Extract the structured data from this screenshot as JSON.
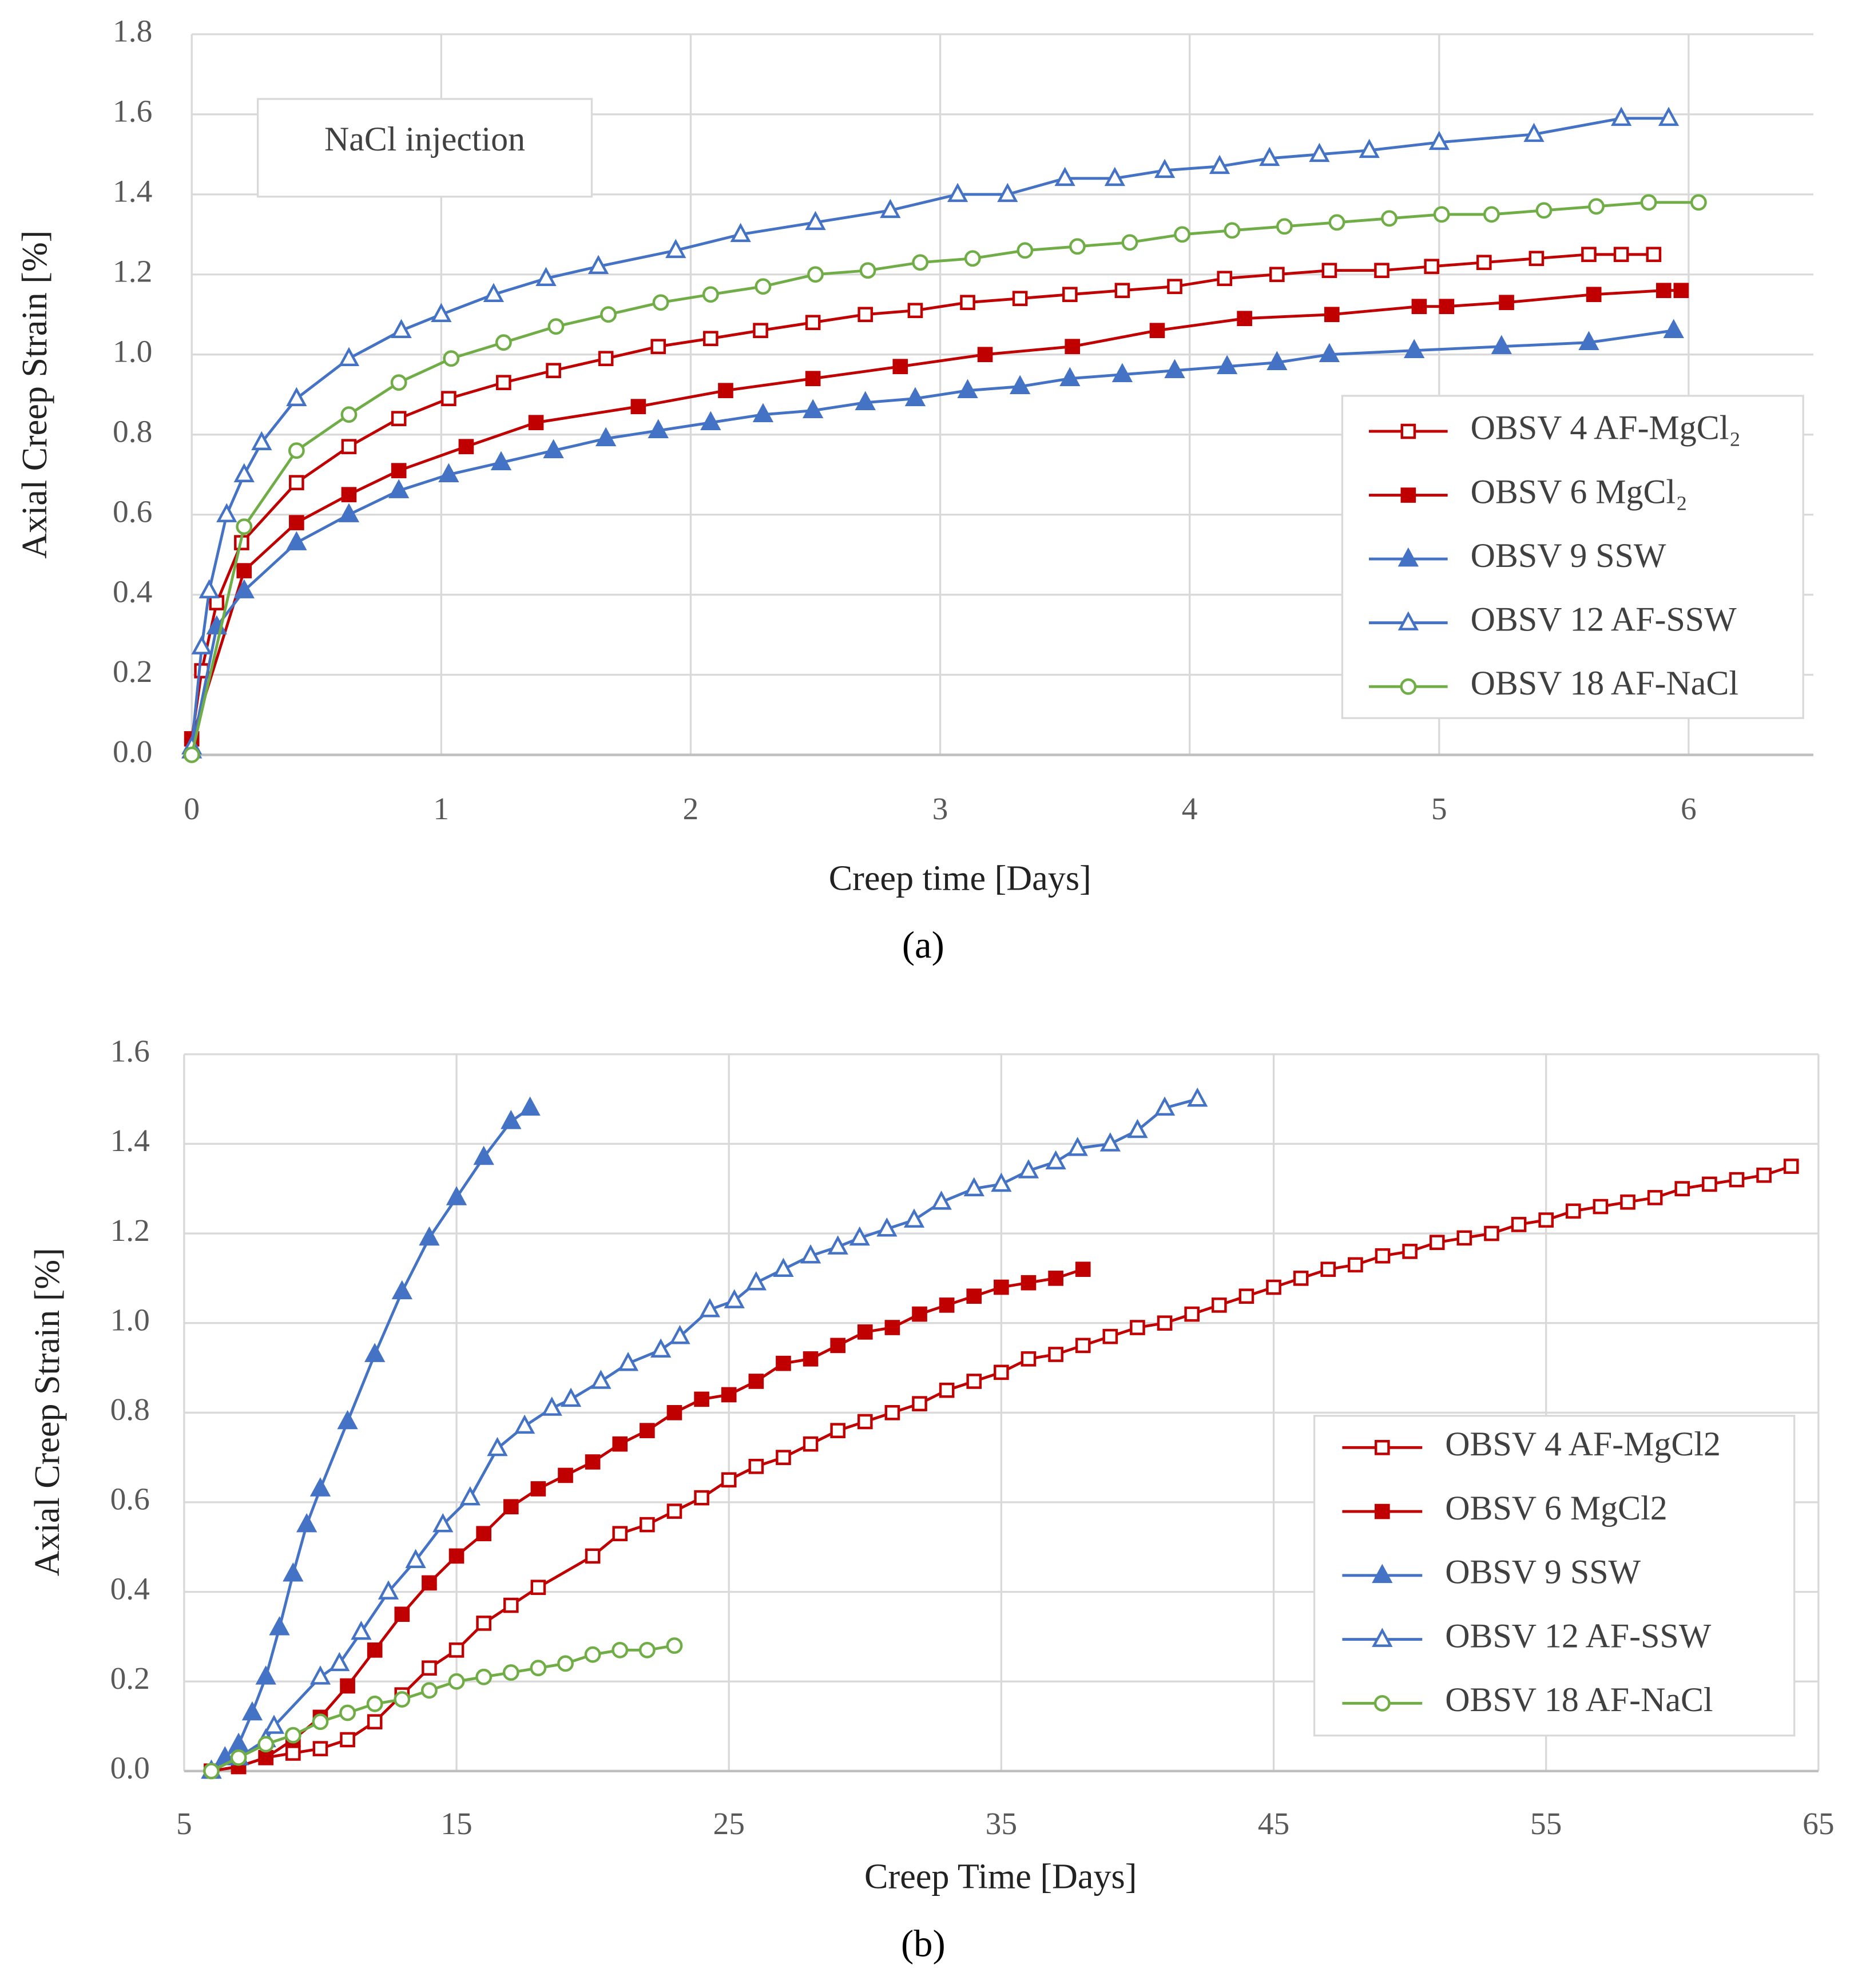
{
  "chart_data": [
    {
      "type": "line",
      "caption": "(a)",
      "annotation": "NaCl injection",
      "x_label": "Creep time [Days]",
      "y_label": "Axial Creep Strain [%]",
      "xlim": [
        0,
        6.5
      ],
      "xticks": [
        0,
        1,
        2,
        3,
        4,
        5,
        6
      ],
      "ylim": [
        0,
        1.8
      ],
      "yticks": [
        {
          "value": 0,
          "label": "0.0"
        },
        {
          "value": 0.2,
          "label": "0.2"
        },
        {
          "value": 0.4,
          "label": "0.4"
        },
        {
          "value": 0.6,
          "label": "0.6"
        },
        {
          "value": 0.8,
          "label": "0.8"
        },
        {
          "value": 1,
          "label": "1.0"
        },
        {
          "value": 1.2,
          "label": "1.2"
        },
        {
          "value": 1.4,
          "label": "1.4"
        },
        {
          "value": 1.6,
          "label": "1.6"
        },
        {
          "value": 1.8,
          "label": "1.8"
        }
      ],
      "grid": true,
      "legend": "right",
      "series": [
        {
          "name": "OBSV 4 AF-MgCl₂",
          "color": "#c00000",
          "marker": "square-open",
          "x": [
            0,
            0.04,
            0.1,
            0.2,
            0.42,
            0.63,
            0.83,
            1.03,
            1.25,
            1.45,
            1.66,
            1.87,
            2.08,
            2.28,
            2.49,
            2.7,
            2.9,
            3.11,
            3.32,
            3.52,
            3.73,
            3.94,
            4.14,
            4.35,
            4.56,
            4.77,
            4.97,
            5.18,
            5.39,
            5.6,
            5.73,
            5.86
          ],
          "values": [
            0.04,
            0.21,
            0.38,
            0.53,
            0.68,
            0.77,
            0.84,
            0.89,
            0.93,
            0.96,
            0.99,
            1.02,
            1.04,
            1.06,
            1.08,
            1.1,
            1.11,
            1.13,
            1.14,
            1.15,
            1.16,
            1.17,
            1.19,
            1.2,
            1.21,
            1.21,
            1.22,
            1.23,
            1.24,
            1.25,
            1.25,
            1.25
          ]
        },
        {
          "name": "OBSV 6 MgCl₂",
          "color": "#c00000",
          "marker": "square",
          "x": [
            0,
            0.21,
            0.42,
            0.63,
            0.83,
            1.1,
            1.38,
            1.79,
            2.14,
            2.49,
            2.84,
            3.18,
            3.53,
            3.87,
            4.22,
            4.57,
            4.92,
            5.03,
            5.27,
            5.62,
            5.9,
            5.97
          ],
          "values": [
            0.04,
            0.46,
            0.58,
            0.65,
            0.71,
            0.77,
            0.83,
            0.87,
            0.91,
            0.94,
            0.97,
            1.0,
            1.02,
            1.06,
            1.09,
            1.1,
            1.12,
            1.12,
            1.13,
            1.15,
            1.16,
            1.16
          ]
        },
        {
          "name": "OBSV 9 SSW",
          "color": "#4472c4",
          "marker": "triangle",
          "x": [
            0,
            0.1,
            0.21,
            0.42,
            0.63,
            0.83,
            1.03,
            1.24,
            1.45,
            1.66,
            1.87,
            2.08,
            2.29,
            2.49,
            2.7,
            2.9,
            3.11,
            3.32,
            3.52,
            3.73,
            3.94,
            4.15,
            4.35,
            4.56,
            4.9,
            5.25,
            5.6,
            5.94
          ],
          "values": [
            0.01,
            0.32,
            0.41,
            0.53,
            0.6,
            0.66,
            0.7,
            0.73,
            0.76,
            0.79,
            0.81,
            0.83,
            0.85,
            0.86,
            0.88,
            0.89,
            0.91,
            0.92,
            0.94,
            0.95,
            0.96,
            0.97,
            0.98,
            1.0,
            1.01,
            1.02,
            1.03,
            1.06
          ]
        },
        {
          "name": "OBSV 12 AF-SSW",
          "color": "#4472c4",
          "marker": "triangle-open",
          "x": [
            0,
            0.04,
            0.07,
            0.14,
            0.21,
            0.28,
            0.42,
            0.63,
            0.84,
            1.0,
            1.21,
            1.42,
            1.63,
            1.94,
            2.2,
            2.5,
            2.8,
            3.07,
            3.27,
            3.5,
            3.7,
            3.9,
            4.12,
            4.32,
            4.52,
            4.72,
            5.0,
            5.38,
            5.73,
            5.92
          ],
          "values": [
            0.02,
            0.27,
            0.41,
            0.6,
            0.7,
            0.78,
            0.89,
            0.99,
            1.06,
            1.1,
            1.15,
            1.19,
            1.22,
            1.26,
            1.3,
            1.33,
            1.36,
            1.4,
            1.4,
            1.44,
            1.44,
            1.46,
            1.47,
            1.49,
            1.5,
            1.51,
            1.53,
            1.55,
            1.59,
            1.59
          ]
        },
        {
          "name": "OBSV 18 AF-NaCl",
          "color": "#70ad47",
          "marker": "circle-open",
          "x": [
            0,
            0.21,
            0.42,
            0.63,
            0.83,
            1.04,
            1.25,
            1.46,
            1.67,
            1.88,
            2.08,
            2.29,
            2.5,
            2.71,
            2.92,
            3.13,
            3.34,
            3.55,
            3.76,
            3.97,
            4.17,
            4.38,
            4.59,
            4.8,
            5.01,
            5.21,
            5.42,
            5.63,
            5.84,
            6.04
          ],
          "values": [
            0,
            0.57,
            0.76,
            0.85,
            0.93,
            0.99,
            1.03,
            1.07,
            1.1,
            1.13,
            1.15,
            1.17,
            1.2,
            1.21,
            1.23,
            1.24,
            1.26,
            1.27,
            1.28,
            1.3,
            1.31,
            1.32,
            1.33,
            1.34,
            1.35,
            1.35,
            1.36,
            1.37,
            1.38,
            1.38
          ]
        }
      ]
    },
    {
      "type": "line",
      "caption": "(b)",
      "x_label": "Creep Time [Days]",
      "y_label": "Axial Creep Strain [%]",
      "xlim": [
        5,
        65
      ],
      "xticks": [
        5,
        15,
        25,
        35,
        45,
        55,
        65
      ],
      "ylim": [
        0,
        1.6
      ],
      "yticks": [
        {
          "value": 0,
          "label": "0.0"
        },
        {
          "value": 0.2,
          "label": "0.2"
        },
        {
          "value": 0.4,
          "label": "0.4"
        },
        {
          "value": 0.6,
          "label": "0.6"
        },
        {
          "value": 0.8,
          "label": "0.8"
        },
        {
          "value": 1,
          "label": "1.0"
        },
        {
          "value": 1.2,
          "label": "1.2"
        },
        {
          "value": 1.4,
          "label": "1.4"
        },
        {
          "value": 1.6,
          "label": "1.6"
        }
      ],
      "grid": true,
      "legend": "lower right",
      "series": [
        {
          "name": "OBSV 4 AF-MgCl2",
          "color": "#c00000",
          "marker": "square-open",
          "x": [
            6,
            7,
            8,
            9,
            10,
            11,
            12,
            13,
            14,
            15,
            16,
            17,
            18,
            20,
            21,
            22,
            23,
            24,
            25,
            26,
            27,
            28,
            29,
            30,
            31,
            32,
            33,
            34,
            35,
            36,
            37,
            38,
            39,
            40,
            41,
            42,
            43,
            44,
            45,
            46,
            47,
            48,
            49,
            50,
            51,
            52,
            53,
            54,
            55,
            56,
            57,
            58,
            59,
            60,
            61,
            62,
            63,
            64
          ],
          "values": [
            0,
            0.01,
            0.03,
            0.04,
            0.05,
            0.07,
            0.11,
            0.17,
            0.23,
            0.27,
            0.33,
            0.37,
            0.41,
            0.48,
            0.53,
            0.55,
            0.58,
            0.61,
            0.65,
            0.68,
            0.7,
            0.73,
            0.76,
            0.78,
            0.8,
            0.82,
            0.85,
            0.87,
            0.89,
            0.92,
            0.93,
            0.95,
            0.97,
            0.99,
            1.0,
            1.02,
            1.04,
            1.06,
            1.08,
            1.1,
            1.12,
            1.13,
            1.15,
            1.16,
            1.18,
            1.19,
            1.2,
            1.22,
            1.23,
            1.25,
            1.26,
            1.27,
            1.28,
            1.3,
            1.31,
            1.32,
            1.33,
            1.35
          ]
        },
        {
          "name": "OBSV 6 MgCl2",
          "color": "#c00000",
          "marker": "square",
          "x": [
            6,
            7,
            8,
            9,
            10,
            11,
            12,
            13,
            14,
            15,
            16,
            17,
            18,
            19,
            20,
            21,
            22,
            23,
            24,
            25,
            26,
            27,
            28,
            29,
            30,
            31,
            32,
            33,
            34,
            35,
            36,
            37,
            38
          ],
          "values": [
            0,
            0.01,
            0.03,
            0.07,
            0.12,
            0.19,
            0.27,
            0.35,
            0.42,
            0.48,
            0.53,
            0.59,
            0.63,
            0.66,
            0.69,
            0.73,
            0.76,
            0.8,
            0.83,
            0.84,
            0.87,
            0.91,
            0.92,
            0.95,
            0.98,
            0.99,
            1.02,
            1.04,
            1.06,
            1.08,
            1.09,
            1.1,
            1.12
          ]
        },
        {
          "name": "OBSV 9 SSW",
          "color": "#4472c4",
          "marker": "triangle",
          "x": [
            6,
            6.5,
            7,
            7.5,
            8,
            8.5,
            9,
            9.5,
            10,
            11,
            12,
            13,
            14,
            15,
            16,
            17,
            17.7
          ],
          "values": [
            0,
            0.03,
            0.06,
            0.13,
            0.21,
            0.32,
            0.44,
            0.55,
            0.63,
            0.78,
            0.93,
            1.07,
            1.19,
            1.28,
            1.37,
            1.45,
            1.48
          ]
        },
        {
          "name": "OBSV 12 AF-SSW",
          "color": "#4472c4",
          "marker": "triangle-open",
          "x": [
            6,
            7,
            8,
            8.3,
            10,
            10.7,
            11.5,
            12.5,
            13.5,
            14.5,
            15.5,
            16.5,
            17.5,
            18.5,
            19.2,
            20.3,
            21.3,
            22.5,
            23.2,
            24.3,
            25.2,
            26,
            27,
            28,
            29,
            29.8,
            30.8,
            31.8,
            32.8,
            34,
            35,
            36,
            37,
            37.8,
            39,
            40,
            41,
            42.2
          ],
          "values": [
            0,
            0.03,
            0.07,
            0.1,
            0.21,
            0.24,
            0.31,
            0.4,
            0.47,
            0.55,
            0.61,
            0.72,
            0.77,
            0.81,
            0.83,
            0.87,
            0.91,
            0.94,
            0.97,
            1.03,
            1.05,
            1.09,
            1.12,
            1.15,
            1.17,
            1.19,
            1.21,
            1.23,
            1.27,
            1.3,
            1.31,
            1.34,
            1.36,
            1.39,
            1.4,
            1.43,
            1.48,
            1.5
          ]
        },
        {
          "name": "OBSV 18 AF-NaCl",
          "color": "#70ad47",
          "marker": "circle-open",
          "x": [
            6,
            7,
            8,
            9,
            10,
            11,
            12,
            13,
            14,
            15,
            16,
            17,
            18,
            19,
            20,
            21,
            22,
            23
          ],
          "values": [
            0,
            0.03,
            0.06,
            0.08,
            0.11,
            0.13,
            0.15,
            0.16,
            0.18,
            0.2,
            0.21,
            0.22,
            0.23,
            0.24,
            0.26,
            0.27,
            0.27,
            0.28
          ]
        }
      ]
    }
  ]
}
